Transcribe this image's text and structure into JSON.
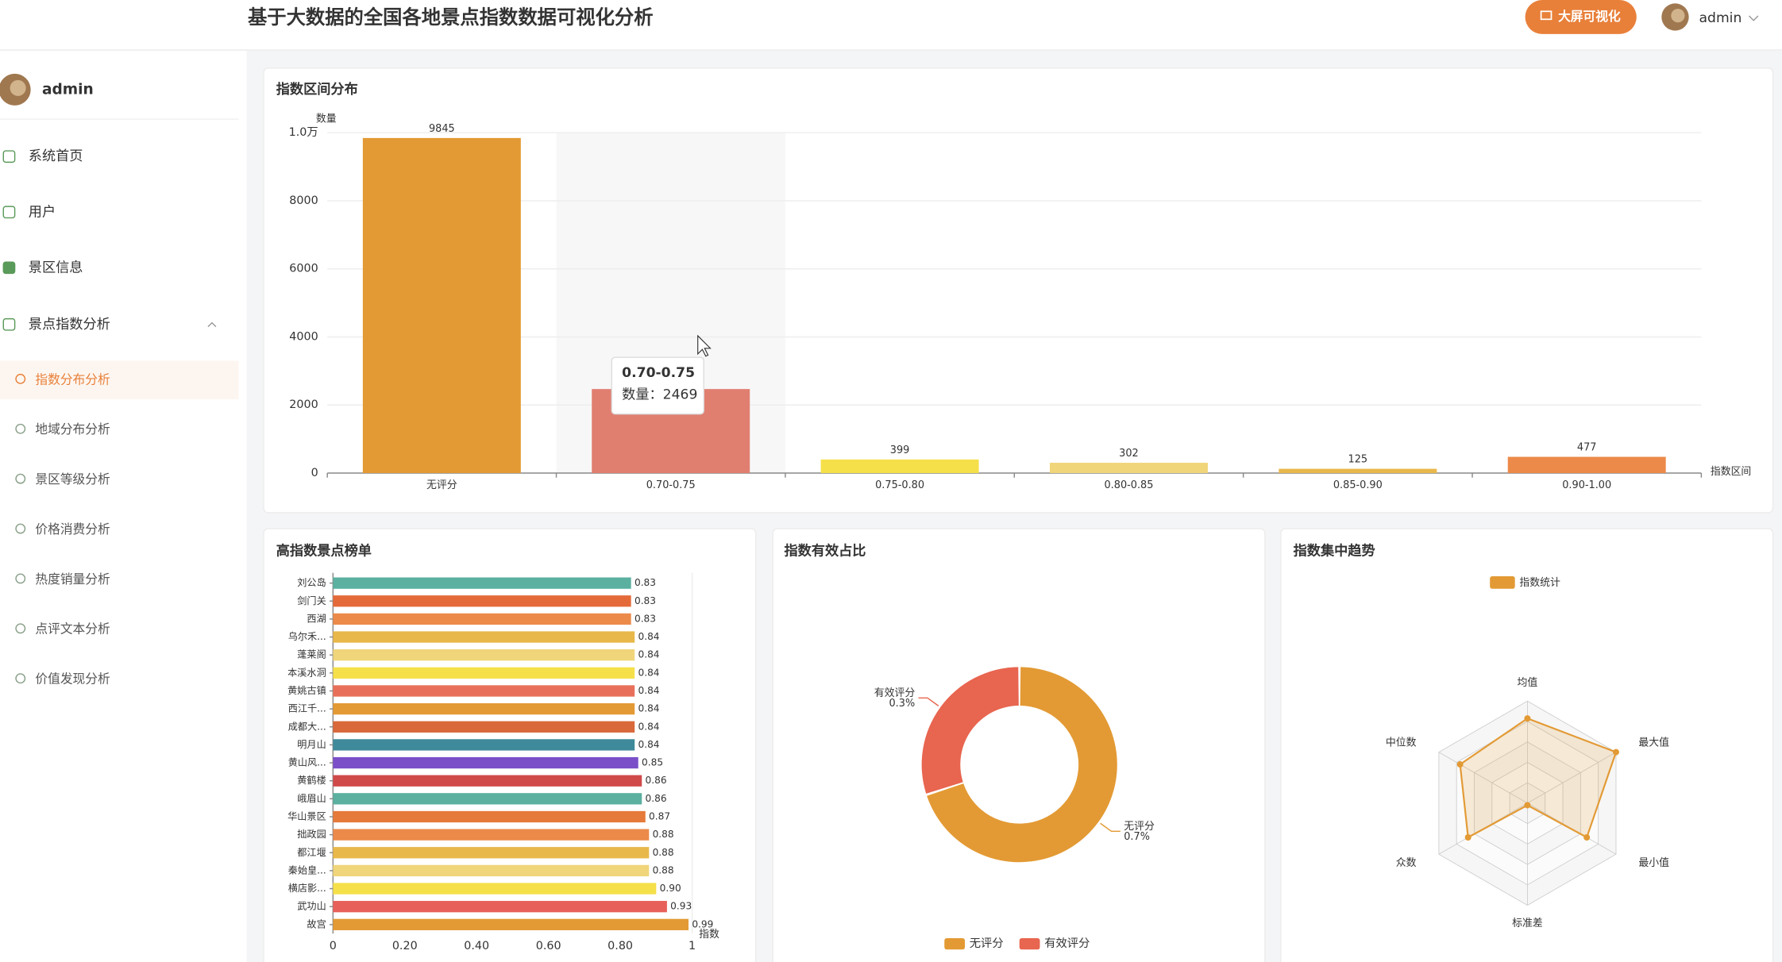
{
  "header": {
    "title": "基于大数据的全国各地景点指数数据可视化分析",
    "button": "大屏可视化",
    "user": "admin"
  },
  "sidebar": {
    "user": "admin",
    "menu": [
      "系统首页",
      "用户",
      "景区信息",
      "景点指数分析"
    ],
    "submenu": [
      "指数分布分析",
      "地域分布分析",
      "景区等级分析",
      "价格消费分析",
      "热度销量分析",
      "点评文本分析",
      "价值发现分析"
    ]
  },
  "chart_data": [
    {
      "type": "bar",
      "title": "指数区间分布",
      "y_label": "数量",
      "x_label": "指数区间",
      "categories": [
        "无评分",
        "0.70-0.75",
        "0.75-0.80",
        "0.80-0.85",
        "0.85-0.90",
        "0.90-1.00"
      ],
      "values": [
        9845,
        2469,
        399,
        302,
        125,
        477
      ],
      "colors": [
        "#e39a34",
        "#e07f70",
        "#f5e04a",
        "#f0d57a",
        "#e8b84a",
        "#ec8a4a"
      ],
      "ylim": [
        0,
        10000
      ],
      "yticks": [
        0,
        2000,
        4000,
        6000,
        8000,
        {
          "value": 10000,
          "label": "1.0万"
        }
      ],
      "grid": true,
      "tooltip": {
        "title": "0.70-0.75",
        "text": "数量：2469"
      }
    },
    {
      "type": "hbar",
      "title": "高指数景点榜单",
      "x_label": "指数",
      "categories": [
        "刘公岛",
        "剑门关",
        "西湖",
        "乌尔禾...",
        "蓬莱阁",
        "本溪水洞",
        "黄姚古镇",
        "西江千...",
        "成都大...",
        "明月山",
        "黄山风...",
        "黄鹤楼",
        "峨眉山",
        "华山景区",
        "拙政园",
        "都江堰",
        "秦始皇...",
        "横店影...",
        "武功山",
        "故宫"
      ],
      "values": [
        0.83,
        0.83,
        0.83,
        0.84,
        0.84,
        0.84,
        0.84,
        0.84,
        0.84,
        0.84,
        0.85,
        0.86,
        0.86,
        0.87,
        0.88,
        0.88,
        0.88,
        0.9,
        0.93,
        0.99
      ],
      "value_labels": [
        "0.83",
        "0.83",
        "0.83",
        "0.84",
        "0.84",
        "0.84",
        "0.84",
        "0.84",
        "0.84",
        "0.84",
        "0.85",
        "0.86",
        "0.86",
        "0.87",
        "0.88",
        "0.88",
        "0.88",
        "0.90",
        "0.93",
        "0.99"
      ],
      "colors": [
        "#5bb0a0",
        "#e56a3a",
        "#ec8a4a",
        "#e8b84a",
        "#f0d57a",
        "#f5e04a",
        "#e8705a",
        "#e39a34",
        "#d9683a",
        "#3f8a9a",
        "#7a4fc8",
        "#d04a4a",
        "#5bb0a0",
        "#e57a3a",
        "#ec8a4a",
        "#e8b84a",
        "#f0d57a",
        "#f5e04a",
        "#e8605a",
        "#e39a34"
      ],
      "xlim": [
        0,
        1
      ],
      "xticks": [
        0,
        {
          "value": 0.2,
          "label": "0.20"
        },
        {
          "value": 0.4,
          "label": "0.40"
        },
        {
          "value": 0.6,
          "label": "0.60"
        },
        {
          "value": 0.8,
          "label": "0.80"
        },
        1
      ]
    },
    {
      "type": "donut",
      "title": "指数有效占比",
      "categories": [
        "无评分",
        "有效评分"
      ],
      "values": [
        0.7,
        0.3
      ],
      "value_labels": [
        "0.7%",
        "0.3%"
      ],
      "colors": [
        "#e39a34",
        "#e8654f"
      ],
      "legend": "bottom"
    },
    {
      "type": "radar",
      "title": "指数集中趋势",
      "indicators": [
        "均值",
        "最大值",
        "最小值",
        "标准差",
        "众数",
        "中位数"
      ],
      "series": [
        {
          "name": "指数统计",
          "color": "#e39a34",
          "values": [
            0.83,
            1.0,
            0.67,
            0.02,
            0.67,
            0.76
          ]
        }
      ],
      "legend": "top"
    }
  ]
}
